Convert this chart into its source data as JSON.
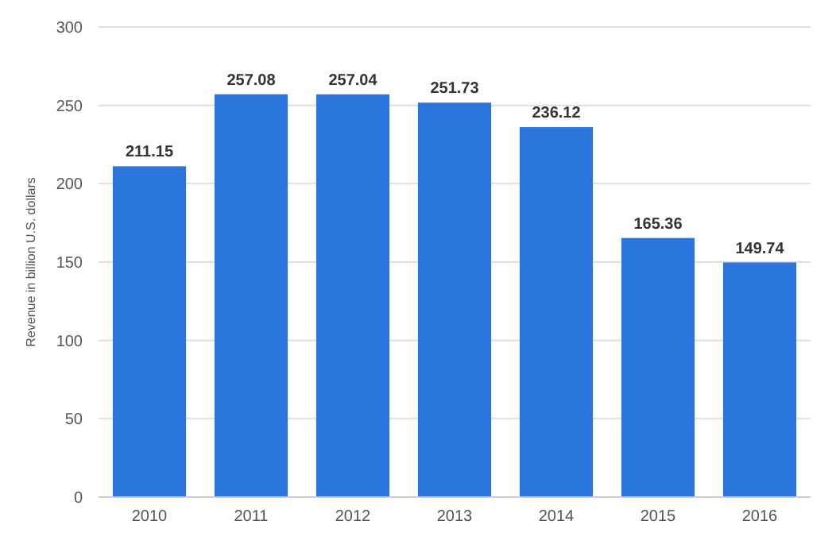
{
  "chart_data": {
    "type": "bar",
    "ylabel": "Revenue in billion U.S. dollars",
    "categories": [
      "2010",
      "2011",
      "2012",
      "2013",
      "2014",
      "2015",
      "2016"
    ],
    "values": [
      211.15,
      257.08,
      257.04,
      251.73,
      236.12,
      165.36,
      149.74
    ],
    "color": "#2a76dd",
    "ylim": [
      0,
      300
    ],
    "yticks": [
      0,
      50,
      100,
      150,
      200,
      250,
      300
    ],
    "grid": "y",
    "data_labels": true
  }
}
